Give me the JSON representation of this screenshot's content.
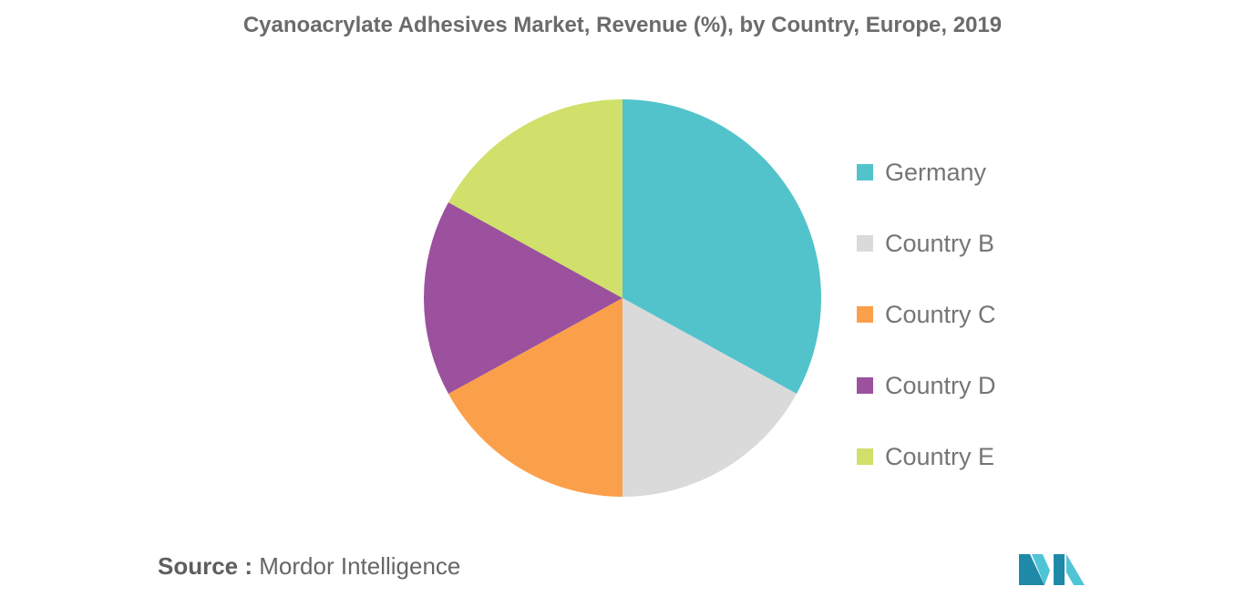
{
  "title": "Cyanoacrylate Adhesives Market, Revenue (%), by Country, Europe, 2019",
  "chart_data": {
    "type": "pie",
    "title": "Cyanoacrylate Adhesives Market, Revenue (%), by Country, Europe, 2019",
    "legend_position": "right",
    "slices": [
      {
        "label": "Germany",
        "value": 33,
        "color": "#52c3cb"
      },
      {
        "label": "Country B",
        "value": 17,
        "color": "#dadada"
      },
      {
        "label": "Country C",
        "value": 17,
        "color": "#fba04a"
      },
      {
        "label": "Country D",
        "value": 16,
        "color": "#9b519e"
      },
      {
        "label": "Country E",
        "value": 17,
        "color": "#d0e06b"
      }
    ]
  },
  "source": {
    "key": "Source :",
    "value": "Mordor Intelligence"
  },
  "logo": {
    "name": "mordor-intelligence-logo",
    "colors": [
      "#1f8aa8",
      "#4fc4d6"
    ]
  }
}
